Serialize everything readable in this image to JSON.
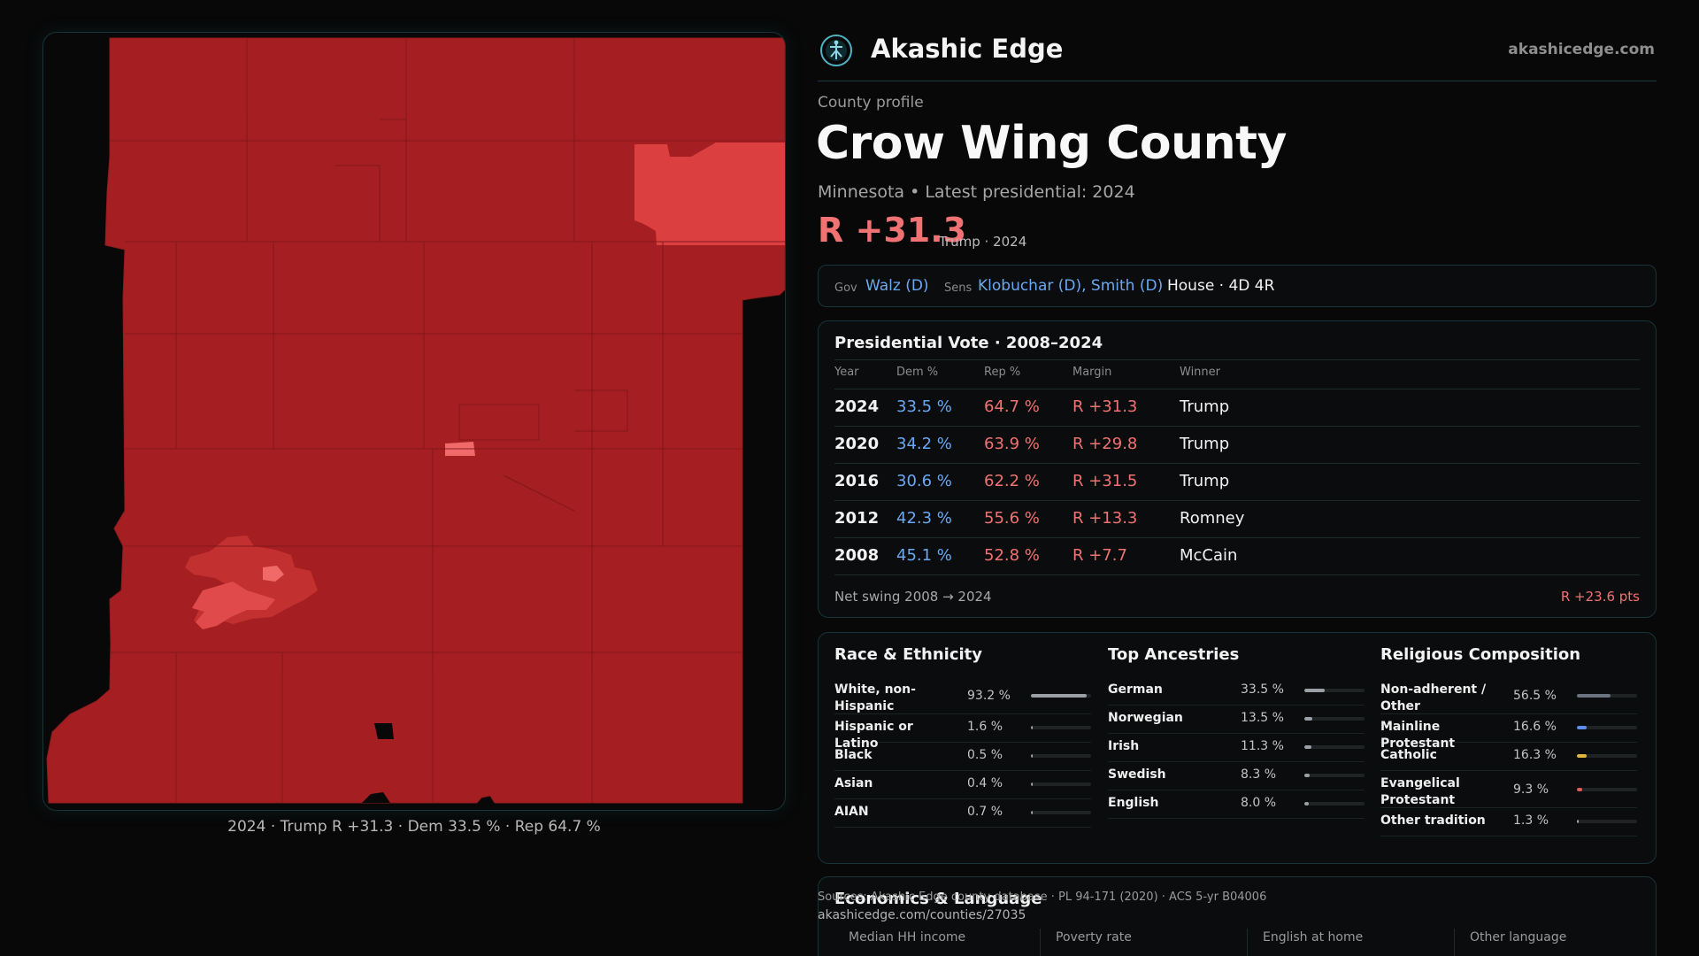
{
  "header": {
    "brand": "Akashic Edge",
    "site_url": "akashicedge.com"
  },
  "map": {
    "caption": "2024 · Trump R +31.3 · Dem 33.5 % · Rep 64.7 %"
  },
  "profile": {
    "eyebrow": "County profile",
    "title": "Crow Wing County",
    "subtitle": "Minnesota • Latest presidential: 2024",
    "margin": "R +31.3",
    "margin_note": "Trump · 2024"
  },
  "officials": {
    "gov_label": "Gov",
    "gov": "Walz (D)",
    "sens_label": "Sens",
    "sens": "Klobuchar (D), Smith (D)",
    "house": "House · 4D 4R"
  },
  "presidential": {
    "title": "Presidential Vote · 2008–2024",
    "headers": {
      "year": "Year",
      "dem": "Dem %",
      "rep": "Rep %",
      "margin": "Margin",
      "winner": "Winner"
    },
    "rows": [
      {
        "year": "2024",
        "dem": "33.5 %",
        "rep": "64.7 %",
        "margin": "R +31.3",
        "winner": "Trump"
      },
      {
        "year": "2020",
        "dem": "34.2 %",
        "rep": "63.9 %",
        "margin": "R +29.8",
        "winner": "Trump"
      },
      {
        "year": "2016",
        "dem": "30.6 %",
        "rep": "62.2 %",
        "margin": "R +31.5",
        "winner": "Trump"
      },
      {
        "year": "2012",
        "dem": "42.3 %",
        "rep": "55.6 %",
        "margin": "R +13.3",
        "winner": "Romney"
      },
      {
        "year": "2008",
        "dem": "45.1 %",
        "rep": "52.8 %",
        "margin": "R +7.7",
        "winner": "McCain"
      }
    ],
    "swing_label": "Net swing 2008 → 2024",
    "swing_value": "R +23.6 pts"
  },
  "race": {
    "title": "Race & Ethnicity",
    "items": [
      {
        "name": "White, non-Hispanic",
        "pct": "93.2 %",
        "value": 93.2
      },
      {
        "name": "Hispanic or Latino",
        "pct": "1.6 %",
        "value": 1.6
      },
      {
        "name": "Black",
        "pct": "0.5 %",
        "value": 0.5
      },
      {
        "name": "Asian",
        "pct": "0.4 %",
        "value": 0.4
      },
      {
        "name": "AIAN",
        "pct": "0.7 %",
        "value": 0.7
      }
    ]
  },
  "ancestry": {
    "title": "Top Ancestries",
    "items": [
      {
        "name": "German",
        "pct": "33.5 %",
        "value": 33.5
      },
      {
        "name": "Norwegian",
        "pct": "13.5 %",
        "value": 13.5
      },
      {
        "name": "Irish",
        "pct": "11.3 %",
        "value": 11.3
      },
      {
        "name": "Swedish",
        "pct": "8.3 %",
        "value": 8.3
      },
      {
        "name": "English",
        "pct": "8.0 %",
        "value": 8.0
      }
    ]
  },
  "religion": {
    "title": "Religious Composition",
    "items": [
      {
        "name": "Non-adherent / Other",
        "pct": "56.5 %",
        "value": 56.5,
        "color": "#6b7280"
      },
      {
        "name": "Mainline Protestant",
        "pct": "16.6 %",
        "value": 16.6,
        "color": "#5b8def"
      },
      {
        "name": "Catholic",
        "pct": "16.3 %",
        "value": 16.3,
        "color": "#e3b53a"
      },
      {
        "name": "Evangelical Protestant",
        "pct": "9.3 %",
        "value": 9.3,
        "color": "#e05a5a"
      },
      {
        "name": "Other tradition",
        "pct": "1.3 %",
        "value": 1.3,
        "color": "#9ca3af"
      }
    ]
  },
  "economics": {
    "title": "Economics & Language",
    "labels": [
      "Median HH income",
      "Poverty rate",
      "English at home",
      "Other language"
    ]
  },
  "footer": {
    "source": "Sources: Akashic Edge county database · PL 94-171 (2020) · ACS 5-yr B04006",
    "url": "akashicedge.com/counties/27035"
  },
  "colors": {
    "dem": "#6aa9f2",
    "rep": "#f07272",
    "bar_neutral": "#9aa0a6",
    "map_base": "#a51f22",
    "map_mid": "#c83334",
    "map_light": "#e04848",
    "map_lighter": "#f06a6a"
  }
}
